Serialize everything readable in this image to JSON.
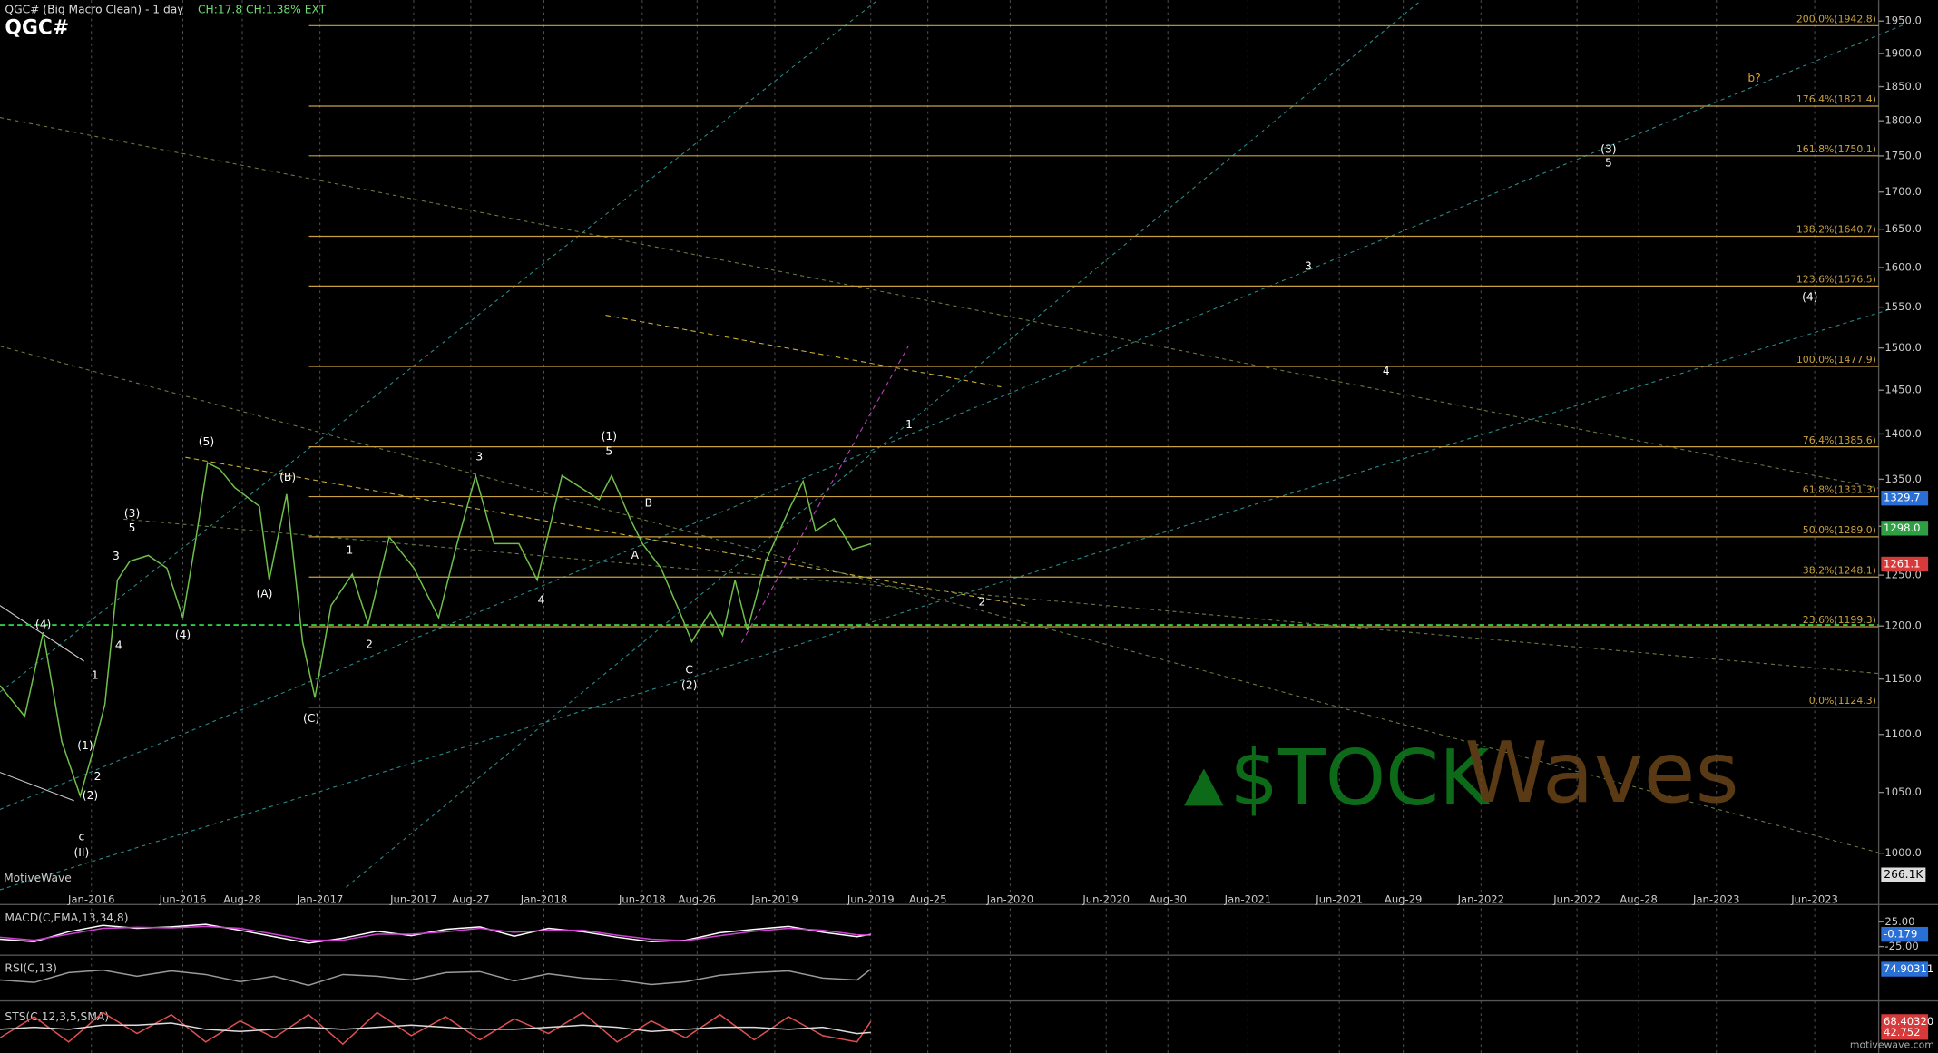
{
  "header": {
    "title": "QGC# (Big Macro Clean) - 1 day",
    "stats": "CH:17.8 CH:1.38% EXT",
    "symbol": "QGC#",
    "brand": "MotiveWave",
    "site": "motivewave.com",
    "volume_label": "266.1K"
  },
  "logo": {
    "left": "$TOCK",
    "right": "Waves"
  },
  "chart_data": [
    {
      "type": "line",
      "log": true,
      "color": "#6fbf4a",
      "xlim": [
        2015.6,
        2023.82
      ],
      "ylim": [
        973,
        1983
      ],
      "xticks": [
        {
          "value": 2016.0,
          "label": "Jan-2016"
        },
        {
          "value": 2016.4,
          "label": "Jun-2016"
        },
        {
          "value": 2016.66,
          "label": "Aug-28"
        },
        {
          "value": 2017.0,
          "label": "Jan-2017"
        },
        {
          "value": 2017.41,
          "label": "Jun-2017"
        },
        {
          "value": 2017.66,
          "label": "Aug-27"
        },
        {
          "value": 2017.98,
          "label": "Jan-2018"
        },
        {
          "value": 2018.41,
          "label": "Jun-2018"
        },
        {
          "value": 2018.65,
          "label": "Aug-26"
        },
        {
          "value": 2018.99,
          "label": "Jan-2019"
        },
        {
          "value": 2019.41,
          "label": "Jun-2019"
        },
        {
          "value": 2019.66,
          "label": "Aug-25"
        },
        {
          "value": 2020.02,
          "label": "Jan-2020"
        },
        {
          "value": 2020.44,
          "label": "Jun-2020"
        },
        {
          "value": 2020.71,
          "label": "Aug-30"
        },
        {
          "value": 2021.06,
          "label": "Jan-2021"
        },
        {
          "value": 2021.46,
          "label": "Jun-2021"
        },
        {
          "value": 2021.74,
          "label": "Aug-29"
        },
        {
          "value": 2022.08,
          "label": "Jan-2022"
        },
        {
          "value": 2022.5,
          "label": "Jun-2022"
        },
        {
          "value": 2022.77,
          "label": "Aug-28"
        },
        {
          "value": 2023.11,
          "label": "Jan-2023"
        },
        {
          "value": 2023.54,
          "label": "Jun-2023"
        }
      ],
      "yticks": [
        {
          "value": 1000,
          "label": "1000.0"
        },
        {
          "value": 1050,
          "label": "1050.0"
        },
        {
          "value": 1100,
          "label": "1100.0"
        },
        {
          "value": 1150,
          "label": "1150.0"
        },
        {
          "value": 1200,
          "label": "1200.0"
        },
        {
          "value": 1250,
          "label": "1250.0"
        },
        {
          "value": 1300,
          "label": "1300.0"
        },
        {
          "value": 1350,
          "label": "1350.0"
        },
        {
          "value": 1400,
          "label": "1400.0"
        },
        {
          "value": 1450,
          "label": "1450.0"
        },
        {
          "value": 1500,
          "label": "1500.0"
        },
        {
          "value": 1550,
          "label": "1550.0"
        },
        {
          "value": 1600,
          "label": "1600.0"
        },
        {
          "value": 1650,
          "label": "1650.0"
        },
        {
          "value": 1700,
          "label": "1700.0"
        },
        {
          "value": 1750,
          "label": "1750.0"
        },
        {
          "value": 1800,
          "label": "1800.0"
        },
        {
          "value": 1850,
          "label": "1850.0"
        },
        {
          "value": 1900,
          "label": "1900.0"
        },
        {
          "value": 1950,
          "label": "1950.0"
        }
      ],
      "grid": true,
      "levels": [
        {
          "value": 1942.8,
          "label": "200.0%(1942.8)"
        },
        {
          "value": 1821.4,
          "label": "176.4%(1821.4)"
        },
        {
          "value": 1750.1,
          "label": "161.8%(1750.1)"
        },
        {
          "value": 1640.7,
          "label": "138.2%(1640.7)"
        },
        {
          "value": 1576.5,
          "label": "123.6%(1576.5)"
        },
        {
          "value": 1477.9,
          "label": "100.0%(1477.9)"
        },
        {
          "value": 1385.6,
          "label": "76.4%(1385.6)"
        },
        {
          "value": 1331.3,
          "label": "61.8%(1331.3)"
        },
        {
          "value": 1289.0,
          "label": "50.0%(1289.0)"
        },
        {
          "value": 1248.1,
          "label": "38.2%(1248.1)"
        },
        {
          "value": 1199.3,
          "label": "23.6%(1199.3)"
        },
        {
          "value": 1124.3,
          "label": "0.0%(1124.3)"
        }
      ],
      "level_color": "#c8a040",
      "hline": {
        "value": 1201,
        "color": "#2ecc40"
      },
      "x": [
        2015.6,
        2015.708,
        2015.789,
        2015.87,
        2015.951,
        2016.005,
        2016.059,
        2016.114,
        2016.168,
        2016.249,
        2016.33,
        2016.4,
        2016.454,
        2016.508,
        2016.562,
        2016.627,
        2016.735,
        2016.778,
        2016.854,
        2016.924,
        2016.978,
        2017.049,
        2017.141,
        2017.211,
        2017.303,
        2017.411,
        2017.519,
        2017.6,
        2017.681,
        2017.762,
        2017.87,
        2017.951,
        2018.059,
        2018.141,
        2018.222,
        2018.276,
        2018.357,
        2018.411,
        2018.492,
        2018.573,
        2018.627,
        2018.708,
        2018.762,
        2018.816,
        2018.87,
        2018.951,
        2019.059,
        2019.114,
        2019.168,
        2019.249,
        2019.33,
        2019.411
      ],
      "values": [
        1144,
        1116,
        1194,
        1094,
        1047,
        1084,
        1127,
        1245,
        1264,
        1270,
        1257,
        1208,
        1282,
        1368,
        1361,
        1341,
        1321,
        1245,
        1334,
        1185,
        1133,
        1220,
        1251,
        1202,
        1289,
        1257,
        1208,
        1282,
        1354,
        1282,
        1282,
        1245,
        1354,
        1341,
        1328,
        1354,
        1308,
        1282,
        1257,
        1214,
        1185,
        1214,
        1191,
        1245,
        1196,
        1264,
        1321,
        1348,
        1295,
        1308,
        1276,
        1282
      ],
      "price_markers": [
        {
          "value": 1329.7,
          "label": "1329.7",
          "color": "#2a6fd6"
        },
        {
          "value": 1298.0,
          "label": "1298.0",
          "color": "#2ea043"
        },
        {
          "value": 1261.1,
          "label": "1261.1",
          "color": "#d63a3a"
        }
      ],
      "annotations": [
        {
          "text": "(4)",
          "x": 2015.789,
          "y": 1201
        },
        {
          "text": "(1)",
          "x": 2015.973,
          "y": 1090
        },
        {
          "text": "1",
          "x": 2016.016,
          "y": 1153
        },
        {
          "text": "2",
          "x": 2016.027,
          "y": 1063
        },
        {
          "text": "(2)",
          "x": 2015.995,
          "y": 1047
        },
        {
          "text": "c",
          "x": 2015.957,
          "y": 1013
        },
        {
          "text": "(II)",
          "x": 2015.957,
          "y": 1000
        },
        {
          "text": "3",
          "x": 2016.108,
          "y": 1269
        },
        {
          "text": "4",
          "x": 2016.119,
          "y": 1181
        },
        {
          "text": "(3)",
          "x": 2016.178,
          "y": 1313
        },
        {
          "text": "5",
          "x": 2016.178,
          "y": 1298
        },
        {
          "text": "(4)",
          "x": 2016.4,
          "y": 1191
        },
        {
          "text": "(5)",
          "x": 2016.503,
          "y": 1391
        },
        {
          "text": "(B)",
          "x": 2016.859,
          "y": 1352
        },
        {
          "text": "(A)",
          "x": 2016.757,
          "y": 1231
        },
        {
          "text": "(C)",
          "x": 2016.962,
          "y": 1114
        },
        {
          "text": "1",
          "x": 2017.13,
          "y": 1275
        },
        {
          "text": "2",
          "x": 2017.216,
          "y": 1182
        },
        {
          "text": "3",
          "x": 2017.697,
          "y": 1374
        },
        {
          "text": "4",
          "x": 2017.968,
          "y": 1225
        },
        {
          "text": "(1)",
          "x": 2018.265,
          "y": 1397
        },
        {
          "text": "5",
          "x": 2018.265,
          "y": 1380
        },
        {
          "text": "B",
          "x": 2018.438,
          "y": 1324
        },
        {
          "text": "A",
          "x": 2018.378,
          "y": 1270
        },
        {
          "text": "C",
          "x": 2018.616,
          "y": 1158
        },
        {
          "text": "(2)",
          "x": 2018.616,
          "y": 1144
        },
        {
          "text": "1",
          "x": 2019.578,
          "y": 1410
        },
        {
          "text": "2",
          "x": 2019.897,
          "y": 1223
        },
        {
          "text": "3",
          "x": 2021.324,
          "y": 1601
        },
        {
          "text": "4",
          "x": 2021.665,
          "y": 1472
        },
        {
          "text": "(3)",
          "x": 2022.638,
          "y": 1759
        },
        {
          "text": "5",
          "x": 2022.638,
          "y": 1740
        },
        {
          "text": "(4)",
          "x": 2023.519,
          "y": 1562
        },
        {
          "text": "b?",
          "x": 2023.276,
          "y": 1862,
          "color": "#e0a030"
        }
      ]
    },
    {
      "type": "line",
      "title": "MACD(C,EMA,13,34,8)",
      "xlim": [
        2015.6,
        2023.82
      ],
      "ylim": [
        -37.5,
        50
      ],
      "yticks": [
        {
          "value": 25,
          "label": "25.00"
        },
        {
          "value": -25,
          "label": "-25.00"
        }
      ],
      "x": [
        2015.6,
        2015.75,
        2015.9,
        2016.05,
        2016.2,
        2016.35,
        2016.5,
        2016.65,
        2016.8,
        2016.95,
        2017.1,
        2017.25,
        2017.4,
        2017.55,
        2017.7,
        2017.85,
        2018.0,
        2018.15,
        2018.3,
        2018.45,
        2018.6,
        2018.75,
        2018.9,
        2019.05,
        2019.2,
        2019.35,
        2019.41
      ],
      "series": [
        {
          "color": "#ffffff",
          "values": [
            -10,
            -15,
            5,
            18,
            12,
            15,
            20,
            8,
            -5,
            -18,
            -8,
            6,
            -3,
            10,
            15,
            -4,
            12,
            5,
            -6,
            -15,
            -12,
            3,
            10,
            16,
            4,
            -5,
            -0.179
          ]
        },
        {
          "color": "#d040d0",
          "values": [
            -6,
            -12,
            0,
            12,
            14,
            13,
            16,
            12,
            0,
            -12,
            -12,
            0,
            0,
            5,
            12,
            4,
            8,
            8,
            -2,
            -10,
            -13,
            -3,
            6,
            12,
            8,
            -1,
            -2
          ]
        }
      ],
      "last_labels": [
        {
          "value": -0.179,
          "label": "-0.179",
          "color": "#2a6fd6"
        }
      ]
    },
    {
      "type": "line",
      "title": "RSI(C,13)",
      "xlim": [
        2015.6,
        2023.82
      ],
      "ylim": [
        0,
        100
      ],
      "x": [
        2015.6,
        2015.75,
        2015.9,
        2016.05,
        2016.2,
        2016.35,
        2016.5,
        2016.65,
        2016.8,
        2016.95,
        2017.1,
        2017.25,
        2017.4,
        2017.55,
        2017.7,
        2017.85,
        2018.0,
        2018.15,
        2018.3,
        2018.45,
        2018.6,
        2018.75,
        2018.9,
        2019.05,
        2019.2,
        2019.35,
        2019.41
      ],
      "series": [
        {
          "color": "#9a9a9a",
          "values": [
            45,
            38,
            65,
            72,
            55,
            70,
            60,
            40,
            55,
            30,
            60,
            55,
            45,
            65,
            68,
            42,
            62,
            50,
            45,
            32,
            40,
            58,
            65,
            70,
            50,
            45,
            74.90311
          ]
        }
      ],
      "last_labels": [
        {
          "value": 74.90311,
          "label": "74.90311",
          "color": "#2a6fd6"
        }
      ]
    },
    {
      "type": "line",
      "title": "STS(C,12,3,5,SMA)",
      "xlim": [
        2015.6,
        2023.82
      ],
      "ylim": [
        0,
        100
      ],
      "x": [
        2015.6,
        2015.75,
        2015.9,
        2016.05,
        2016.2,
        2016.35,
        2016.5,
        2016.65,
        2016.8,
        2016.95,
        2017.1,
        2017.25,
        2017.4,
        2017.55,
        2017.7,
        2017.85,
        2018.0,
        2018.15,
        2018.3,
        2018.45,
        2018.6,
        2018.75,
        2018.9,
        2019.05,
        2019.2,
        2019.35,
        2019.41
      ],
      "series": [
        {
          "color": "#e05050",
          "values": [
            30,
            80,
            20,
            90,
            40,
            85,
            20,
            70,
            30,
            85,
            15,
            90,
            35,
            80,
            25,
            75,
            40,
            90,
            20,
            70,
            30,
            85,
            25,
            80,
            35,
            20,
            68.4032
          ]
        },
        {
          "color": "#dddddd",
          "values": [
            50,
            55,
            50,
            60,
            60,
            65,
            50,
            45,
            50,
            55,
            50,
            55,
            60,
            55,
            50,
            50,
            55,
            60,
            55,
            45,
            50,
            55,
            55,
            50,
            55,
            40,
            42.752
          ]
        }
      ],
      "last_labels": [
        {
          "value": 68.4032,
          "label": "68.40320",
          "color": "#d63a3a"
        },
        {
          "value": 42.752,
          "label": "42.752",
          "color": "#d63a3a"
        }
      ]
    }
  ]
}
